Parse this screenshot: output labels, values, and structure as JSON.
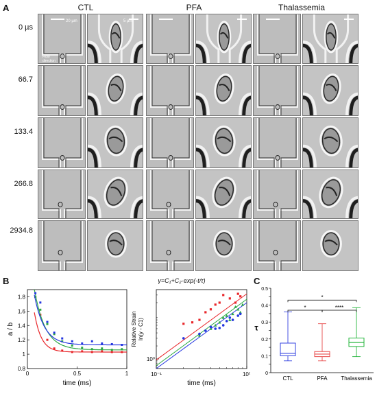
{
  "panels": {
    "a": "A",
    "b": "B",
    "c": "C"
  },
  "panel_a": {
    "columns": [
      "CTL",
      "PFA",
      "Thalassemia"
    ],
    "times": [
      "0 µs",
      "66.7",
      "133.4",
      "266.8",
      "2934.8"
    ],
    "scale_labels": {
      "wide": "20 µm",
      "zoom": "5 µm"
    },
    "flow_label": [
      "Flow",
      "direction"
    ]
  },
  "equation": "γ=C₁+C₂·exp(-t/τ)",
  "chart_data": [
    {
      "type": "scatter",
      "title": "",
      "xlabel": "time (ms)",
      "ylabel": "a / b",
      "xlim": [
        0,
        1
      ],
      "ylim": [
        0.8,
        1.9
      ],
      "xticks": [
        "0",
        "0.5",
        "1"
      ],
      "yticks": [
        "0.8",
        "1",
        "1.2",
        "1.4",
        "1.6",
        "1.8"
      ],
      "series": [
        {
          "color": "#e8262a",
          "points": [
            [
              0.08,
              1.8
            ],
            [
              0.13,
              1.55
            ],
            [
              0.2,
              1.2
            ],
            [
              0.27,
              1.08
            ],
            [
              0.35,
              1.05
            ],
            [
              0.45,
              1.03
            ],
            [
              0.55,
              1.04
            ],
            [
              0.65,
              1.03
            ],
            [
              0.75,
              1.04
            ],
            [
              0.85,
              1.03
            ],
            [
              0.95,
              1.03
            ]
          ],
          "fit": {
            "c1": 1.03,
            "c2": 1.5,
            "tau": 0.07
          }
        },
        {
          "color": "#2da944",
          "points": [
            [
              0.08,
              1.8
            ],
            [
              0.13,
              1.62
            ],
            [
              0.2,
              1.42
            ],
            [
              0.27,
              1.28
            ],
            [
              0.35,
              1.18
            ],
            [
              0.45,
              1.12
            ],
            [
              0.55,
              1.09
            ],
            [
              0.65,
              1.07
            ],
            [
              0.75,
              1.08
            ],
            [
              0.85,
              1.06
            ],
            [
              0.95,
              1.07
            ]
          ],
          "fit": {
            "c1": 1.06,
            "c2": 1.6,
            "tau": 0.11
          }
        },
        {
          "color": "#2437e0",
          "points": [
            [
              0.08,
              1.85
            ],
            [
              0.13,
              1.72
            ],
            [
              0.2,
              1.45
            ],
            [
              0.27,
              1.3
            ],
            [
              0.35,
              1.22
            ],
            [
              0.45,
              1.18
            ],
            [
              0.55,
              1.15
            ],
            [
              0.65,
              1.18
            ],
            [
              0.75,
              1.15
            ],
            [
              0.85,
              1.14
            ],
            [
              0.95,
              1.13
            ]
          ],
          "fit": {
            "c1": 1.13,
            "c2": 1.4,
            "tau": 0.1
          }
        }
      ]
    },
    {
      "type": "scatter",
      "title": "",
      "xlabel": "time (ms)",
      "ylabel": [
        "Relative Strain",
        "ln(γ - C1)"
      ],
      "x_scale": "log",
      "y_scale": "log",
      "xlim": [
        0.1,
        1
      ],
      "ylim": [
        0.6,
        40
      ],
      "xticks": [
        "10⁻¹",
        "10⁰"
      ],
      "yticks": [
        "10⁰"
      ],
      "series": [
        {
          "color": "#e8262a",
          "points": [
            [
              0.2,
              6.5
            ],
            [
              0.25,
              7
            ],
            [
              0.3,
              8
            ],
            [
              0.35,
              12
            ],
            [
              0.4,
              14
            ],
            [
              0.45,
              18
            ],
            [
              0.5,
              20
            ],
            [
              0.55,
              30
            ],
            [
              0.65,
              25
            ],
            [
              0.75,
              20
            ],
            [
              0.8,
              32
            ],
            [
              0.85,
              28
            ]
          ],
          "line": [
            [
              0.1,
              0.95
            ],
            [
              1,
              32
            ]
          ]
        },
        {
          "color": "#2da944",
          "points": [
            [
              0.3,
              3.5
            ],
            [
              0.4,
              5
            ],
            [
              0.45,
              6
            ],
            [
              0.5,
              7
            ],
            [
              0.55,
              9
            ],
            [
              0.6,
              10
            ],
            [
              0.65,
              8
            ],
            [
              0.7,
              11
            ],
            [
              0.75,
              16
            ],
            [
              0.8,
              14
            ],
            [
              0.85,
              12
            ],
            [
              0.9,
              18
            ]
          ],
          "line": [
            [
              0.1,
              0.7
            ],
            [
              1,
              24
            ]
          ]
        },
        {
          "color": "#2437e0",
          "points": [
            [
              0.2,
              3
            ],
            [
              0.3,
              3.8
            ],
            [
              0.35,
              4.5
            ],
            [
              0.4,
              5.5
            ],
            [
              0.45,
              5
            ],
            [
              0.5,
              5.2
            ],
            [
              0.55,
              6
            ],
            [
              0.6,
              7.5
            ],
            [
              0.65,
              9
            ],
            [
              0.7,
              8
            ],
            [
              0.8,
              10
            ],
            [
              0.85,
              11
            ]
          ],
          "line": [
            [
              0.1,
              0.6
            ],
            [
              1,
              20
            ]
          ]
        }
      ]
    },
    {
      "type": "boxplot",
      "title": "",
      "ylabel": "τ",
      "ylim": [
        0,
        0.5
      ],
      "yticks": [
        "0",
        "0.05",
        "0.1",
        "0.15",
        "0.2",
        "0.25",
        "0.3",
        "0.35",
        "0.4",
        "0.45",
        "0.5"
      ],
      "categories": [
        "CTL",
        "PFA",
        "Thalassemia"
      ],
      "boxes": [
        {
          "color": "#3040e0",
          "min": 0.07,
          "q1": 0.1,
          "median": 0.115,
          "q3": 0.175,
          "max": 0.36
        },
        {
          "color": "#e84a4a",
          "min": 0.07,
          "q1": 0.095,
          "median": 0.11,
          "q3": 0.125,
          "max": 0.29
        },
        {
          "color": "#22b53a",
          "min": 0.095,
          "q1": 0.155,
          "median": 0.18,
          "q3": 0.205,
          "max": 0.385
        }
      ],
      "significance": [
        {
          "from": 0,
          "to": 2,
          "y": 0.43,
          "label": "*"
        },
        {
          "from": 0,
          "to": 1,
          "y": 0.37,
          "label": "*"
        },
        {
          "from": 1,
          "to": 2,
          "y": 0.37,
          "label": "****"
        }
      ]
    }
  ]
}
